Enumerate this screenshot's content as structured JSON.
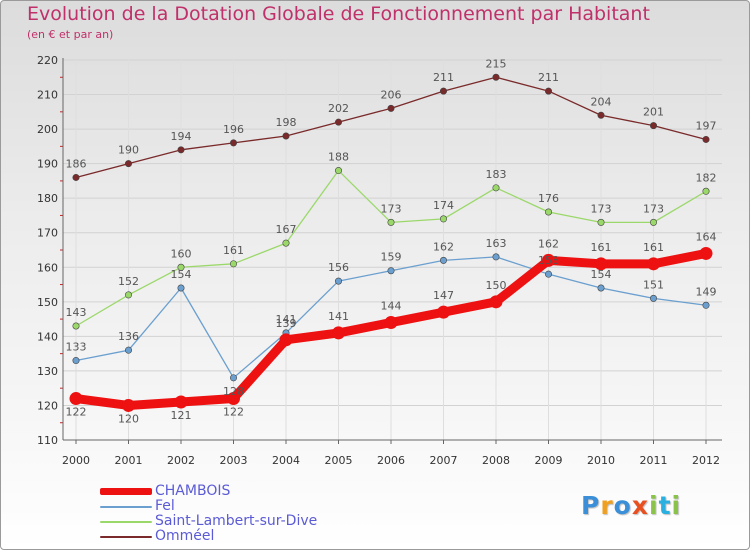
{
  "title": "Evolution de la Dotation Globale de Fonctionnement par Habitant",
  "subtitle": "(en € et par an)",
  "logo": {
    "text": "Proxiti",
    "colors": [
      "#3a8fd8",
      "#f0a020",
      "#3a8fd8",
      "#e85020",
      "#8bc34a",
      "#2ab0e0",
      "#8bc34a"
    ]
  },
  "colors": {
    "title": "#c0306a",
    "legend_text": "#5b5bd6"
  },
  "chart_data": {
    "type": "line",
    "title": "Evolution de la Dotation Globale de Fonctionnement par Habitant",
    "ylabel": "(en € et par an)",
    "xlabel": "",
    "x": [
      "2000",
      "2001",
      "2002",
      "2003",
      "2004",
      "2005",
      "2006",
      "2007",
      "2008",
      "2009",
      "2010",
      "2011",
      "2012"
    ],
    "ylim": [
      110,
      220
    ],
    "yticks": [
      "110",
      "120",
      "130",
      "140",
      "150",
      "160",
      "170",
      "180",
      "190",
      "200",
      "210",
      "220"
    ],
    "series": [
      {
        "name": "CHAMBOIS",
        "color": "#ee1111",
        "thick": true,
        "values": [
          122,
          120,
          121,
          122,
          139,
          141,
          144,
          147,
          150,
          162,
          161,
          161,
          164
        ],
        "labels": [
          "122",
          "120",
          "121",
          "122",
          "139",
          "141",
          "144",
          "147",
          "150",
          "162",
          "161",
          "161",
          "164"
        ]
      },
      {
        "name": "Fel",
        "color": "#6a9fcf",
        "thick": false,
        "values": [
          133,
          136,
          154,
          128,
          141,
          156,
          159,
          162,
          163,
          158,
          154,
          151,
          149
        ],
        "labels": [
          "133",
          "136",
          "154",
          "128",
          "141",
          "156",
          "159",
          "162",
          "163",
          "158",
          "154",
          "151",
          "149"
        ]
      },
      {
        "name": "Saint-Lambert-sur-Dive",
        "color": "#9bd86a",
        "thick": false,
        "values": [
          143,
          152,
          160,
          161,
          167,
          188,
          173,
          174,
          183,
          176,
          173,
          173,
          182
        ],
        "labels": [
          "143",
          "152",
          "160",
          "161",
          "167",
          "188",
          "173",
          "174",
          "183",
          "176",
          "173",
          "173",
          "182"
        ]
      },
      {
        "name": "Omméel",
        "color": "#7a2a2a",
        "thick": false,
        "values": [
          186,
          190,
          194,
          196,
          198,
          202,
          206,
          211,
          215,
          211,
          204,
          201,
          197
        ],
        "labels": [
          "186",
          "190",
          "194",
          "196",
          "198",
          "202",
          "206",
          "211",
          "215",
          "211",
          "204",
          "201",
          "197"
        ]
      }
    ],
    "legend": [
      "CHAMBOIS",
      "Fel",
      "Saint-Lambert-sur-Dive",
      "Omméel"
    ]
  }
}
